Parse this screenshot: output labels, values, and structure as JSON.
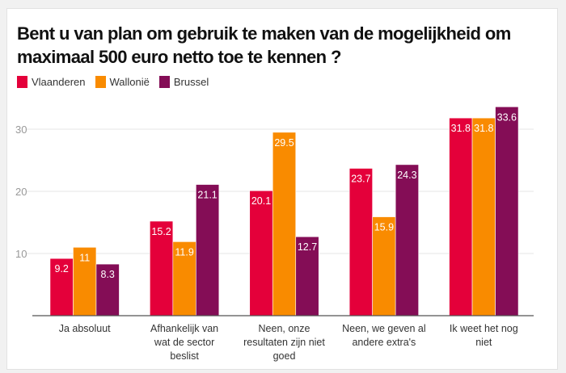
{
  "chart_data": {
    "type": "bar",
    "title": "Bent u van plan om gebruik te maken van de mogelijkheid om maximaal 500 euro netto toe te kennen ?",
    "categories": [
      [
        "Ja absoluut"
      ],
      [
        "Afhankelijk van",
        "wat de sector",
        "beslist"
      ],
      [
        "Neen, onze",
        "resultaten zijn niet",
        "goed"
      ],
      [
        "Neen, we geven al",
        "andere extra's"
      ],
      [
        "Ik weet het nog",
        "niet"
      ]
    ],
    "series": [
      {
        "name": "Vlaanderen",
        "color": "#e4003a",
        "values": [
          9.2,
          15.2,
          20.1,
          23.7,
          31.8
        ]
      },
      {
        "name": "Wallonië",
        "color": "#f98b00",
        "values": [
          11,
          11.9,
          29.5,
          15.9,
          31.8
        ]
      },
      {
        "name": "Brussel",
        "color": "#840d56",
        "values": [
          8.3,
          21.1,
          12.7,
          24.3,
          33.6
        ]
      }
    ],
    "yticks": [
      10,
      20,
      30
    ],
    "ylim": [
      0,
      36
    ],
    "grid": true,
    "legend": "top-left",
    "xlabel": "",
    "ylabel": ""
  }
}
